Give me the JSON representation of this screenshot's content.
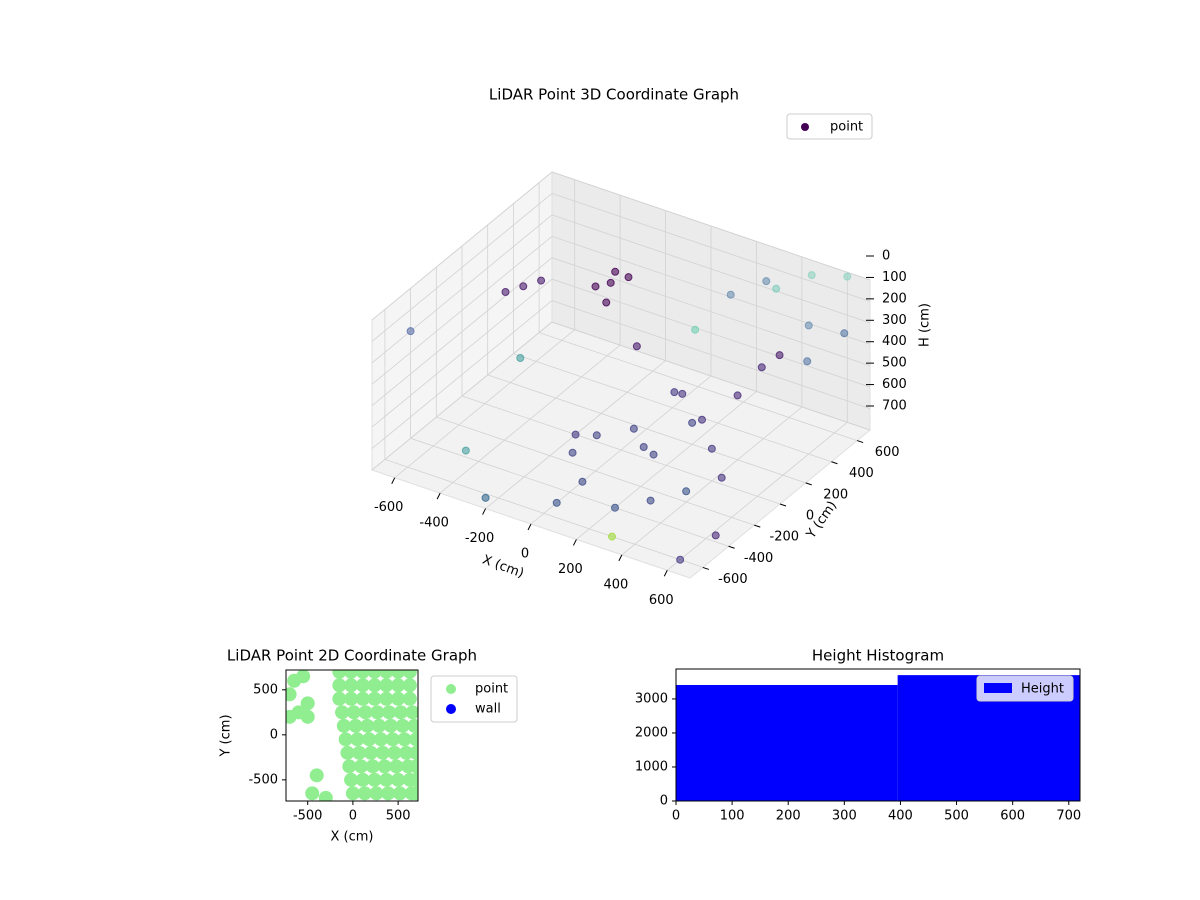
{
  "chart_data": [
    {
      "type": "scatter3d",
      "title": "LiDAR Point 3D Coordinate Graph",
      "xlabel": "X (cm)",
      "ylabel": "Y (cm)",
      "zlabel": "H (cm)",
      "xlim": [
        -700,
        700
      ],
      "ylim": [
        -700,
        700
      ],
      "zlim": [
        0,
        700
      ],
      "z_inverted": true,
      "xticks": [
        -600,
        -400,
        -200,
        0,
        200,
        400,
        600
      ],
      "yticks": [
        -600,
        -400,
        -200,
        0,
        200,
        400,
        600
      ],
      "zticks": [
        0,
        100,
        200,
        300,
        400,
        500,
        600,
        700
      ],
      "grid": true,
      "legend": "upper right",
      "series": [
        {
          "name": "point",
          "color": "#440154",
          "x": [
            -300,
            -250,
            -350,
            -280,
            -320,
            -600,
            -650,
            -550,
            0,
            100,
            200,
            -100,
            200,
            300,
            0,
            100,
            300,
            400,
            450,
            500,
            400,
            -200,
            200,
            400,
            500,
            400,
            500,
            600,
            300,
            600,
            700,
            650,
            200,
            100,
            -700,
            -400,
            -200,
            600,
            700,
            -500,
            300,
            0,
            -100,
            150,
            -50
          ],
          "y": [
            450,
            500,
            420,
            380,
            520,
            300,
            250,
            350,
            100,
            0,
            -100,
            -200,
            200,
            -300,
            -300,
            300,
            100,
            200,
            300,
            350,
            0,
            0,
            -400,
            -200,
            -100,
            500,
            600,
            700,
            600,
            400,
            500,
            300,
            500,
            400,
            -400,
            -500,
            -700,
            -600,
            -500,
            100,
            -600,
            -500,
            300,
            150,
            -100
          ],
          "z": [
            250,
            230,
            270,
            300,
            240,
            300,
            320,
            280,
            650,
            650,
            600,
            650,
            600,
            680,
            700,
            550,
            500,
            400,
            300,
            250,
            550,
            700,
            700,
            650,
            600,
            50,
            0,
            20,
            100,
            100,
            150,
            200,
            150,
            300,
            200,
            600,
            650,
            700,
            600,
            500,
            700,
            700,
            400,
            450,
            600
          ],
          "colors": [
            "#440154",
            "#440154",
            "#440154",
            "#440154",
            "#440154",
            "#481a6c",
            "#481a6c",
            "#481a6c",
            "#414487",
            "#414487",
            "#414487",
            "#414487",
            "#414487",
            "#3e4989",
            "#3e4989",
            "#46327e",
            "#46327e",
            "#482878",
            "#482878",
            "#481a6c",
            "#443983",
            "#443983",
            "#3b528b",
            "#3b528b",
            "#46327e",
            "#7fcdbb",
            "#8fd3c0",
            "#8fd3c0",
            "#6a8fb0",
            "#6a8fb0",
            "#5a7aa6",
            "#5a7aa6",
            "#6a8fb0",
            "#73d0b4",
            "#5a6fa8",
            "#48a0a0",
            "#31688e",
            "#443983",
            "#482878",
            "#48a0a0",
            "#a0da39",
            "#3b528b",
            "#481a6c",
            "#443983",
            "#414487"
          ]
        }
      ]
    },
    {
      "type": "scatter",
      "title": "LiDAR Point 2D Coordinate Graph",
      "xlabel": "X (cm)",
      "ylabel": "Y (cm)",
      "xlim": [
        -740,
        720
      ],
      "ylim": [
        -735,
        720
      ],
      "xticks": [
        -500,
        0,
        500
      ],
      "yticks": [
        -500,
        0,
        500
      ],
      "legend": "outside upper right",
      "series": [
        {
          "name": "point",
          "color": "#90ee90",
          "x": [
            -150,
            -20,
            110,
            240,
            370,
            500,
            630,
            -150,
            -20,
            110,
            240,
            370,
            500,
            630,
            -150,
            -20,
            110,
            240,
            370,
            500,
            630,
            -120,
            10,
            140,
            270,
            400,
            530,
            660,
            -100,
            30,
            160,
            290,
            420,
            550,
            680,
            -80,
            50,
            180,
            310,
            440,
            570,
            700,
            -60,
            70,
            200,
            330,
            460,
            590,
            700,
            -40,
            90,
            220,
            350,
            480,
            610,
            700,
            -20,
            110,
            240,
            370,
            500,
            630,
            700,
            0,
            130,
            260,
            390,
            520,
            650,
            700,
            -650,
            -550,
            -700,
            -600,
            -500,
            -400,
            -450,
            -300,
            -500,
            -700
          ],
          "y": [
            700,
            700,
            700,
            700,
            700,
            700,
            700,
            550,
            550,
            550,
            550,
            550,
            550,
            550,
            400,
            400,
            400,
            400,
            400,
            400,
            400,
            250,
            250,
            250,
            250,
            250,
            250,
            250,
            100,
            100,
            100,
            100,
            100,
            100,
            100,
            -50,
            -50,
            -50,
            -50,
            -50,
            -50,
            -50,
            -200,
            -200,
            -200,
            -200,
            -200,
            -200,
            -200,
            -350,
            -350,
            -350,
            -350,
            -350,
            -350,
            -350,
            -500,
            -500,
            -500,
            -500,
            -500,
            -500,
            -500,
            -650,
            -650,
            -650,
            -650,
            -650,
            -650,
            -650,
            600,
            650,
            450,
            250,
            200,
            -450,
            -650,
            -700,
            350,
            200
          ]
        },
        {
          "name": "wall",
          "color": "#0000ff",
          "x": [],
          "y": []
        }
      ]
    },
    {
      "type": "histogram",
      "title": "Height Histogram",
      "name": "Height",
      "color": "#0000ff",
      "bins": [
        0,
        395,
        720
      ],
      "values": [
        3410,
        3700
      ],
      "xlim": [
        0,
        720
      ],
      "ylim": [
        0,
        3880
      ],
      "xticks": [
        0,
        100,
        200,
        300,
        400,
        500,
        600,
        700
      ],
      "yticks": [
        0,
        1000,
        2000,
        3000
      ],
      "legend": "upper right"
    }
  ]
}
